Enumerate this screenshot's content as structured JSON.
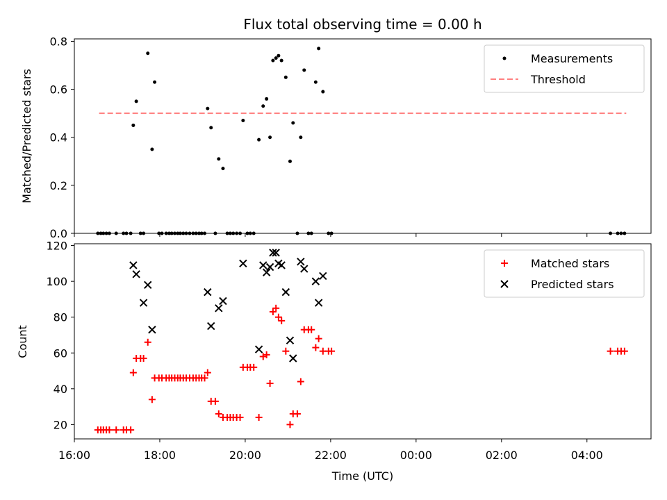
{
  "chart_data": {
    "title": "Flux total observing time = 0.00 h",
    "x_axis": {
      "label": "Time (UTC)",
      "range_hours": [
        16.0,
        29.5
      ],
      "ticks": [
        {
          "h": 16,
          "label": "16:00"
        },
        {
          "h": 18,
          "label": "18:00"
        },
        {
          "h": 20,
          "label": "20:00"
        },
        {
          "h": 22,
          "label": "22:00"
        },
        {
          "h": 24,
          "label": "00:00"
        },
        {
          "h": 26,
          "label": "02:00"
        },
        {
          "h": 28,
          "label": "04:00"
        }
      ]
    },
    "panels": [
      {
        "type": "scatter",
        "ylabel": "Matched/Predicted stars",
        "ylim": [
          0,
          0.81
        ],
        "yticks": [
          {
            "v": 0.0,
            "label": "0.0"
          },
          {
            "v": 0.2,
            "label": "0.2"
          },
          {
            "v": 0.4,
            "label": "0.4"
          },
          {
            "v": 0.6,
            "label": "0.6"
          },
          {
            "v": 0.8,
            "label": "0.8"
          }
        ],
        "legend": [
          {
            "label": "Measurements",
            "marker": "dot",
            "color": "#000000"
          },
          {
            "label": "Threshold",
            "marker": "dashed-line",
            "color": "#ff7f7f"
          }
        ],
        "threshold": {
          "y": 0.5,
          "x_start": 16.58,
          "x_end": 28.92,
          "color": "#ff7f7f"
        },
        "measurements": [
          [
            16.55,
            0
          ],
          [
            16.62,
            0
          ],
          [
            16.68,
            0
          ],
          [
            16.75,
            0
          ],
          [
            16.82,
            0
          ],
          [
            16.98,
            0
          ],
          [
            17.15,
            0
          ],
          [
            17.22,
            0
          ],
          [
            17.32,
            0
          ],
          [
            17.38,
            0.45
          ],
          [
            17.45,
            0.55
          ],
          [
            17.55,
            0
          ],
          [
            17.62,
            0
          ],
          [
            17.72,
            0.75
          ],
          [
            17.82,
            0.35
          ],
          [
            17.88,
            0.63
          ],
          [
            17.98,
            0
          ],
          [
            18.05,
            0
          ],
          [
            18.15,
            0
          ],
          [
            18.22,
            0
          ],
          [
            18.28,
            0
          ],
          [
            18.35,
            0
          ],
          [
            18.42,
            0
          ],
          [
            18.48,
            0
          ],
          [
            18.55,
            0
          ],
          [
            18.62,
            0
          ],
          [
            18.7,
            0
          ],
          [
            18.78,
            0
          ],
          [
            18.85,
            0
          ],
          [
            18.92,
            0
          ],
          [
            18.98,
            0
          ],
          [
            19.05,
            0
          ],
          [
            19.12,
            0.52
          ],
          [
            19.2,
            0.44
          ],
          [
            19.3,
            0
          ],
          [
            19.38,
            0.31
          ],
          [
            19.48,
            0.27
          ],
          [
            19.58,
            0
          ],
          [
            19.65,
            0
          ],
          [
            19.72,
            0
          ],
          [
            19.8,
            0
          ],
          [
            19.88,
            0
          ],
          [
            19.95,
            0.47
          ],
          [
            20.05,
            0
          ],
          [
            20.12,
            0
          ],
          [
            20.2,
            0
          ],
          [
            20.32,
            0.39
          ],
          [
            20.42,
            0.53
          ],
          [
            20.5,
            0.56
          ],
          [
            20.58,
            0.4
          ],
          [
            20.65,
            0.72
          ],
          [
            20.72,
            0.73
          ],
          [
            20.78,
            0.74
          ],
          [
            20.85,
            0.72
          ],
          [
            20.95,
            0.65
          ],
          [
            21.05,
            0.3
          ],
          [
            21.12,
            0.46
          ],
          [
            21.22,
            0
          ],
          [
            21.3,
            0.4
          ],
          [
            21.38,
            0.68
          ],
          [
            21.48,
            0
          ],
          [
            21.55,
            0
          ],
          [
            21.65,
            0.63
          ],
          [
            21.72,
            0.77
          ],
          [
            21.82,
            0.59
          ],
          [
            21.95,
            0
          ],
          [
            22.02,
            0
          ],
          [
            28.55,
            0
          ],
          [
            28.72,
            0
          ],
          [
            28.8,
            0
          ],
          [
            28.88,
            0
          ]
        ]
      },
      {
        "type": "scatter",
        "ylabel": "Count",
        "ylim": [
          12,
          121
        ],
        "yticks": [
          {
            "v": 20,
            "label": "20"
          },
          {
            "v": 40,
            "label": "40"
          },
          {
            "v": 60,
            "label": "60"
          },
          {
            "v": 80,
            "label": "80"
          },
          {
            "v": 100,
            "label": "100"
          },
          {
            "v": 120,
            "label": "120"
          }
        ],
        "legend": [
          {
            "label": "Matched stars",
            "marker": "plus",
            "color": "#ff0000"
          },
          {
            "label": "Predicted stars",
            "marker": "x",
            "color": "#000000"
          }
        ],
        "matched_stars": [
          [
            16.55,
            17
          ],
          [
            16.62,
            17
          ],
          [
            16.68,
            17
          ],
          [
            16.75,
            17
          ],
          [
            16.82,
            17
          ],
          [
            16.98,
            17
          ],
          [
            17.15,
            17
          ],
          [
            17.22,
            17
          ],
          [
            17.32,
            17
          ],
          [
            17.38,
            49
          ],
          [
            17.45,
            57
          ],
          [
            17.55,
            57
          ],
          [
            17.62,
            57
          ],
          [
            17.72,
            66
          ],
          [
            17.82,
            34
          ],
          [
            17.88,
            46
          ],
          [
            17.98,
            46
          ],
          [
            18.05,
            46
          ],
          [
            18.15,
            46
          ],
          [
            18.22,
            46
          ],
          [
            18.28,
            46
          ],
          [
            18.35,
            46
          ],
          [
            18.42,
            46
          ],
          [
            18.48,
            46
          ],
          [
            18.55,
            46
          ],
          [
            18.62,
            46
          ],
          [
            18.7,
            46
          ],
          [
            18.78,
            46
          ],
          [
            18.85,
            46
          ],
          [
            18.92,
            46
          ],
          [
            18.98,
            46
          ],
          [
            19.05,
            46
          ],
          [
            19.12,
            49
          ],
          [
            19.2,
            33
          ],
          [
            19.3,
            33
          ],
          [
            19.38,
            26
          ],
          [
            19.48,
            24
          ],
          [
            19.58,
            24
          ],
          [
            19.65,
            24
          ],
          [
            19.72,
            24
          ],
          [
            19.8,
            24
          ],
          [
            19.88,
            24
          ],
          [
            19.95,
            52
          ],
          [
            20.05,
            52
          ],
          [
            20.12,
            52
          ],
          [
            20.2,
            52
          ],
          [
            20.32,
            24
          ],
          [
            20.42,
            58
          ],
          [
            20.5,
            59
          ],
          [
            20.58,
            43
          ],
          [
            20.65,
            83
          ],
          [
            20.72,
            85
          ],
          [
            20.78,
            80
          ],
          [
            20.85,
            78
          ],
          [
            20.95,
            61
          ],
          [
            21.05,
            20
          ],
          [
            21.12,
            26
          ],
          [
            21.22,
            26
          ],
          [
            21.3,
            44
          ],
          [
            21.38,
            73
          ],
          [
            21.48,
            73
          ],
          [
            21.55,
            73
          ],
          [
            21.65,
            63
          ],
          [
            21.72,
            68
          ],
          [
            21.82,
            61
          ],
          [
            21.95,
            61
          ],
          [
            22.02,
            61
          ],
          [
            28.55,
            61
          ],
          [
            28.72,
            61
          ],
          [
            28.8,
            61
          ],
          [
            28.88,
            61
          ]
        ],
        "predicted_stars": [
          [
            17.38,
            109
          ],
          [
            17.45,
            104
          ],
          [
            17.62,
            88
          ],
          [
            17.72,
            98
          ],
          [
            17.82,
            73
          ],
          [
            19.12,
            94
          ],
          [
            19.2,
            75
          ],
          [
            19.38,
            85
          ],
          [
            19.48,
            89
          ],
          [
            19.95,
            110
          ],
          [
            20.32,
            62
          ],
          [
            20.42,
            109
          ],
          [
            20.5,
            105
          ],
          [
            20.58,
            108
          ],
          [
            20.65,
            116
          ],
          [
            20.72,
            116
          ],
          [
            20.78,
            110
          ],
          [
            20.85,
            109
          ],
          [
            20.95,
            94
          ],
          [
            21.05,
            67
          ],
          [
            21.12,
            57
          ],
          [
            21.3,
            111
          ],
          [
            21.38,
            107
          ],
          [
            21.65,
            100
          ],
          [
            21.72,
            88
          ],
          [
            21.82,
            103
          ]
        ]
      }
    ]
  }
}
